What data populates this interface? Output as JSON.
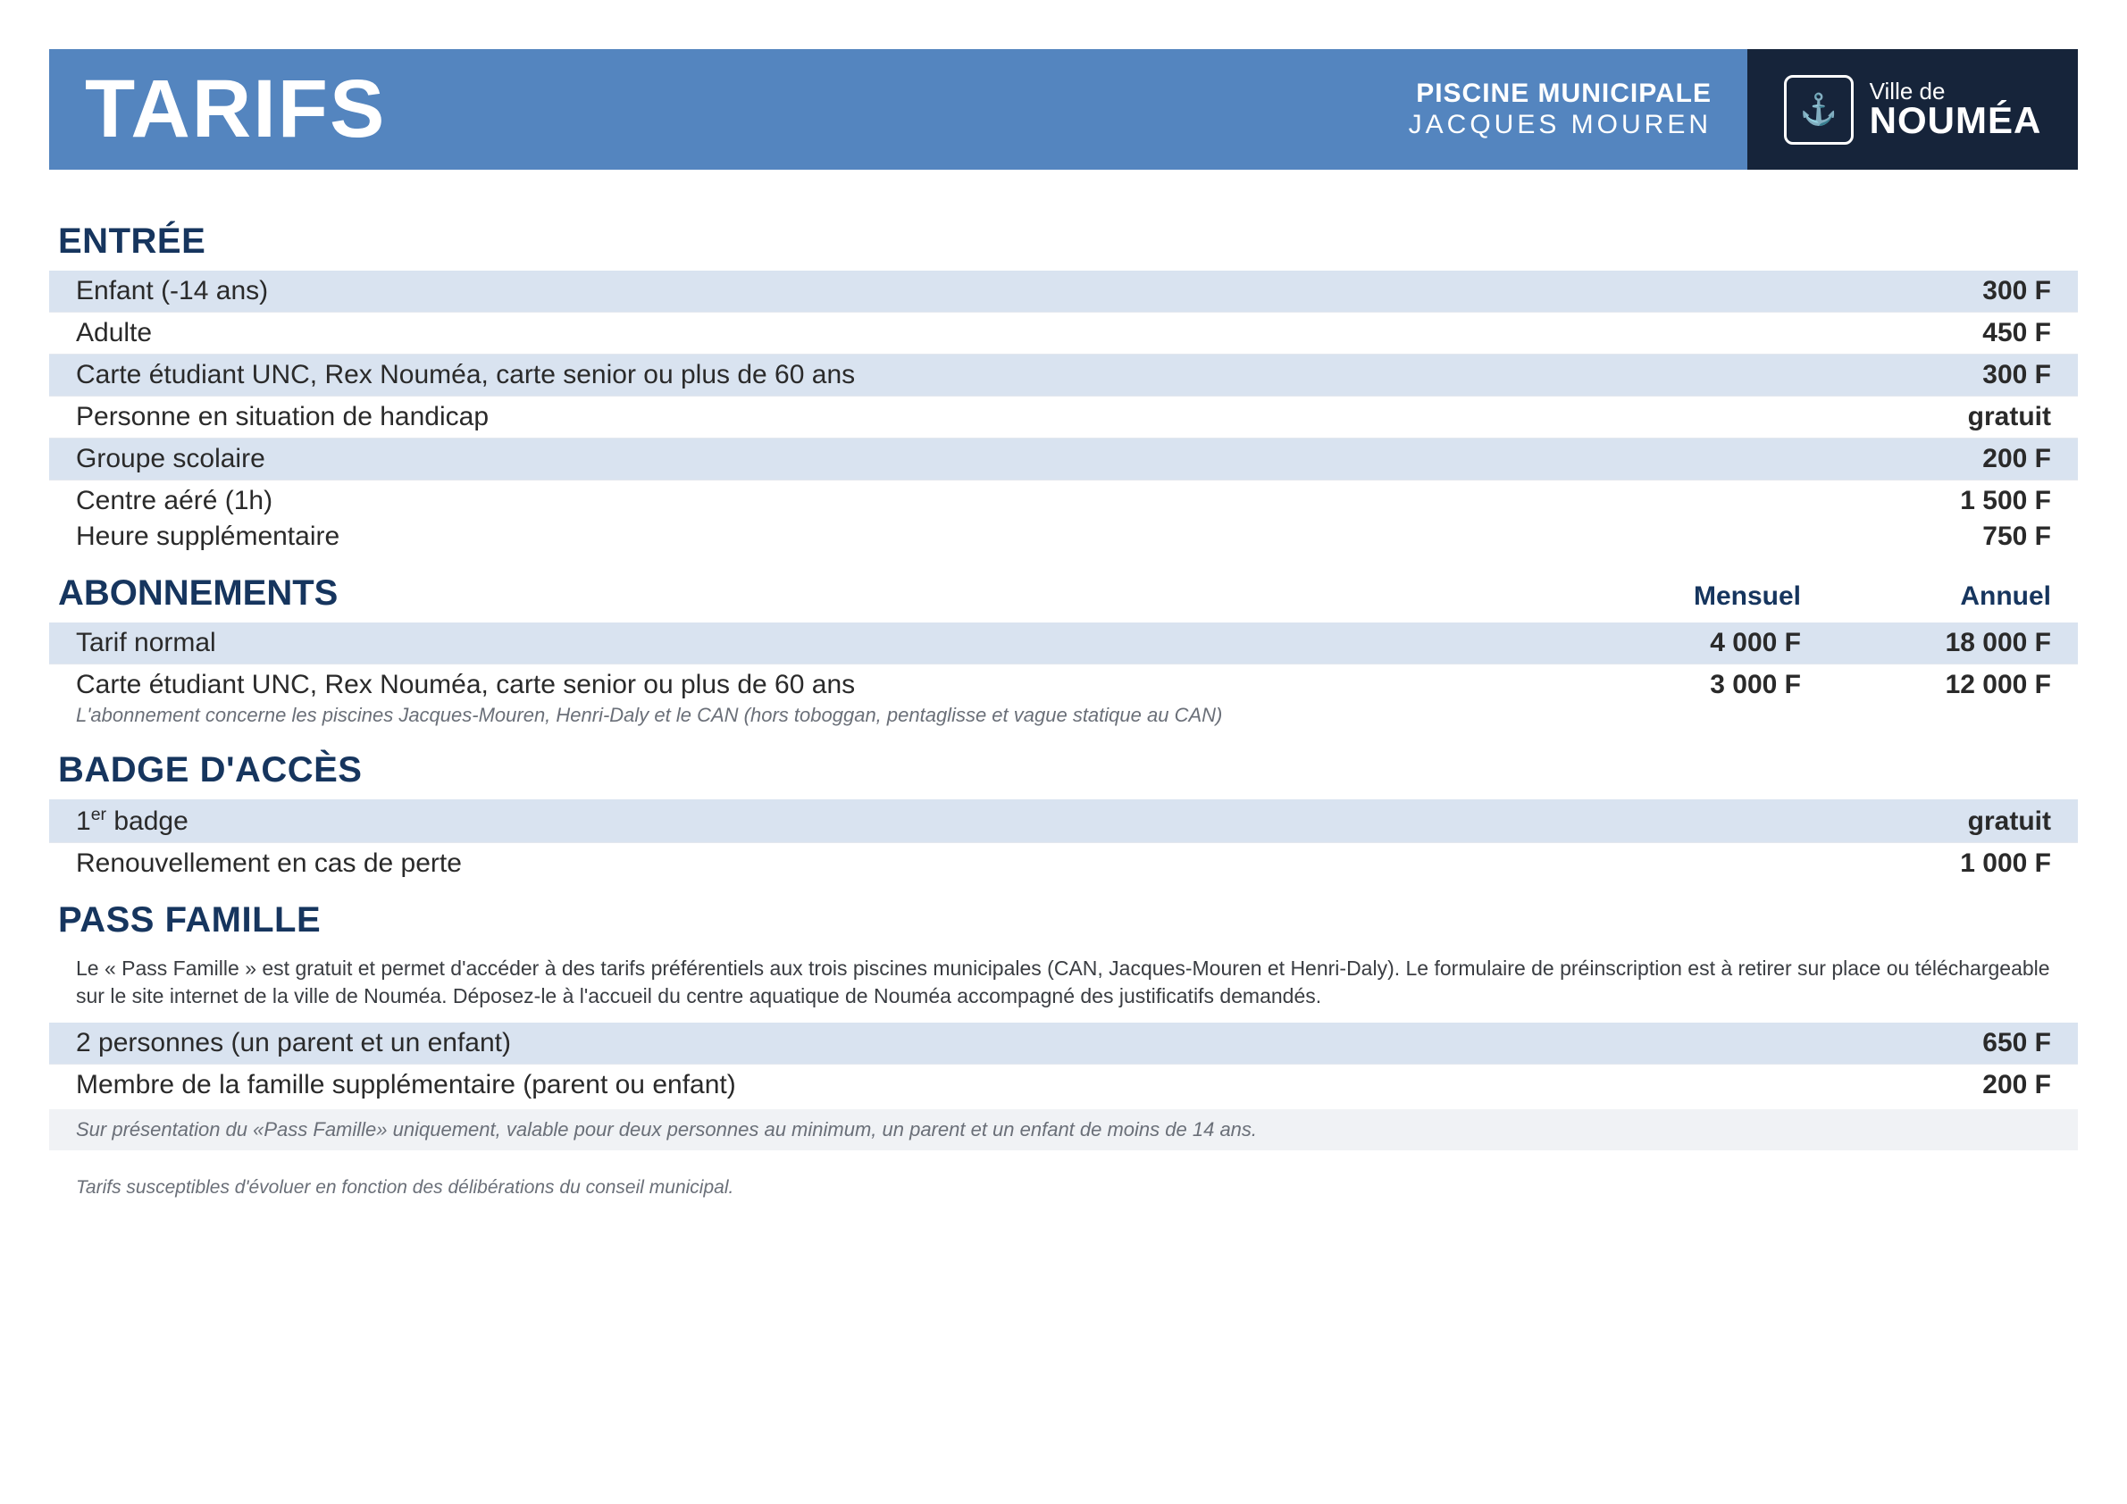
{
  "header": {
    "title": "TARIFS",
    "subtitle_line1": "PISCINE MUNICIPALE",
    "subtitle_line2": "JACQUES MOUREN",
    "logo_line1": "Ville de",
    "logo_line2": "NOUMÉA"
  },
  "colors": {
    "header_bg": "#5485bf",
    "logo_bg": "#16243a",
    "stripe_bg": "#d9e3f0",
    "title_color": "#16355e",
    "text_color": "#2a2a2a",
    "note_color": "#6a6f78"
  },
  "sections": {
    "entree": {
      "title": "ENTRÉE",
      "rows": [
        {
          "label": "Enfant (-14 ans)",
          "price": "300 F"
        },
        {
          "label": "Adulte",
          "price": "450 F"
        },
        {
          "label": "Carte étudiant UNC, Rex Nouméa, carte senior ou plus de 60 ans",
          "price": "300 F"
        },
        {
          "label": "Personne en situation de handicap",
          "price": "gratuit"
        },
        {
          "label": "Groupe scolaire",
          "price": "200 F"
        },
        {
          "label": "Centre aéré (1h)",
          "price": "1 500 F"
        },
        {
          "label": "Heure supplémentaire",
          "price": "750 F"
        }
      ]
    },
    "abonnements": {
      "title": "ABONNEMENTS",
      "col_monthly": "Mensuel",
      "col_annual": "Annuel",
      "rows": [
        {
          "label": "Tarif normal",
          "monthly": "4 000 F",
          "annual": "18 000 F"
        },
        {
          "label": "Carte étudiant UNC, Rex Nouméa, carte senior ou plus de 60 ans",
          "monthly": "3 000 F",
          "annual": "12 000 F"
        }
      ],
      "note": "L'abonnement concerne les piscines Jacques-Mouren, Henri-Daly et le CAN (hors toboggan, pentaglisse et vague statique au CAN)"
    },
    "badge": {
      "title": "BADGE D'ACCÈS",
      "rows": [
        {
          "label_html": "1<sup>er</sup> badge",
          "price": "gratuit"
        },
        {
          "label": "Renouvellement en cas de perte",
          "price": "1 000 F"
        }
      ]
    },
    "pass": {
      "title": "PASS FAMILLE",
      "intro": "Le « Pass Famille » est gratuit et permet d'accéder à des tarifs préférentiels aux trois piscines municipales (CAN, Jacques-Mouren et Henri-Daly). Le formulaire de préinscription est à retirer sur place ou téléchargeable sur le site internet de la ville de Nouméa. Déposez-le à l'accueil du centre aquatique de Nouméa accompagné des justificatifs demandés.",
      "rows": [
        {
          "label": "2 personnes (un parent et un enfant)",
          "price": "650 F"
        },
        {
          "label": "Membre de la famille supplémentaire (parent ou enfant)",
          "price": "200 F"
        }
      ],
      "footer": "Sur présentation du «Pass Famille» uniquement, valable pour deux personnes au minimum, un parent et un enfant de moins de 14 ans."
    }
  },
  "disclaimer": "Tarifs susceptibles d'évoluer en fonction des délibérations du conseil municipal."
}
